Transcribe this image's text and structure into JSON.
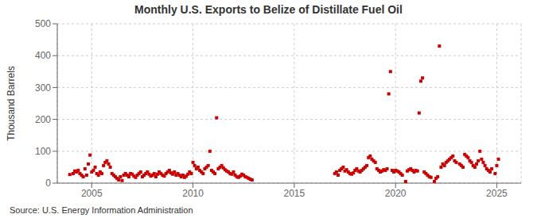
{
  "chart_data": {
    "type": "scatter",
    "title": "Monthly U.S. Exports to Belize of Distillate Fuel Oil",
    "y_label": "Thousand Barrels",
    "annotations": [
      "Source: U.S. Energy Information Administration"
    ],
    "xlim": [
      2003.3,
      2026.2
    ],
    "ylim": [
      0,
      500
    ],
    "xticks": [
      2005,
      2010,
      2015,
      2020,
      2025
    ],
    "yticks": [
      0,
      100,
      200,
      300,
      400,
      500
    ],
    "grid": true,
    "color": "#cc0000",
    "marker": "square",
    "x": [
      2003.917,
      2004.083,
      2004.167,
      2004.25,
      2004.333,
      2004.417,
      2004.5,
      2004.583,
      2004.667,
      2004.75,
      2004.833,
      2004.917,
      2005.0,
      2005.083,
      2005.167,
      2005.25,
      2005.333,
      2005.417,
      2005.5,
      2005.583,
      2005.667,
      2005.75,
      2005.833,
      2005.917,
      2006.0,
      2006.083,
      2006.167,
      2006.25,
      2006.333,
      2006.417,
      2006.5,
      2006.583,
      2006.667,
      2006.75,
      2006.833,
      2006.917,
      2007.0,
      2007.083,
      2007.167,
      2007.25,
      2007.333,
      2007.417,
      2007.5,
      2007.583,
      2007.667,
      2007.75,
      2007.833,
      2007.917,
      2008.0,
      2008.083,
      2008.167,
      2008.25,
      2008.333,
      2008.417,
      2008.5,
      2008.583,
      2008.667,
      2008.75,
      2008.833,
      2008.917,
      2009.0,
      2009.083,
      2009.167,
      2009.25,
      2009.333,
      2009.417,
      2009.5,
      2009.583,
      2009.667,
      2009.75,
      2009.833,
      2009.917,
      2010.0,
      2010.083,
      2010.167,
      2010.25,
      2010.333,
      2010.417,
      2010.5,
      2010.583,
      2010.667,
      2010.75,
      2010.833,
      2010.917,
      2011.0,
      2011.083,
      2011.167,
      2011.25,
      2011.333,
      2011.417,
      2011.5,
      2011.583,
      2011.667,
      2011.75,
      2011.833,
      2011.917,
      2012.0,
      2012.083,
      2012.167,
      2012.25,
      2012.333,
      2012.417,
      2012.5,
      2012.583,
      2012.667,
      2012.75,
      2012.833,
      2012.917,
      2017.0,
      2017.083,
      2017.167,
      2017.25,
      2017.333,
      2017.417,
      2017.5,
      2017.583,
      2017.667,
      2017.75,
      2017.833,
      2017.917,
      2018.0,
      2018.083,
      2018.167,
      2018.25,
      2018.333,
      2018.417,
      2018.5,
      2018.583,
      2018.667,
      2018.75,
      2018.833,
      2018.917,
      2019.0,
      2019.083,
      2019.167,
      2019.25,
      2019.333,
      2019.417,
      2019.5,
      2019.583,
      2019.667,
      2019.75,
      2019.833,
      2019.917,
      2020.0,
      2020.083,
      2020.167,
      2020.25,
      2020.333,
      2020.5,
      2020.583,
      2020.667,
      2020.75,
      2020.833,
      2020.917,
      2021.0,
      2021.083,
      2021.167,
      2021.25,
      2021.333,
      2021.417,
      2021.5,
      2021.583,
      2021.667,
      2021.75,
      2021.917,
      2022.0,
      2022.083,
      2022.167,
      2022.25,
      2022.333,
      2022.417,
      2022.5,
      2022.583,
      2022.667,
      2022.75,
      2022.833,
      2022.917,
      2023.0,
      2023.167,
      2023.25,
      2023.333,
      2023.417,
      2023.5,
      2023.583,
      2023.667,
      2023.75,
      2023.833,
      2023.917,
      2024.0,
      2024.083,
      2024.167,
      2024.25,
      2024.333,
      2024.417,
      2024.5,
      2024.583,
      2024.667,
      2024.75,
      2024.917,
      2025.0,
      2025.083
    ],
    "values": [
      27,
      30,
      38,
      35,
      40,
      30,
      25,
      20,
      45,
      25,
      60,
      88,
      35,
      40,
      50,
      30,
      25,
      35,
      30,
      55,
      65,
      70,
      60,
      50,
      30,
      25,
      20,
      15,
      10,
      20,
      8,
      25,
      30,
      25,
      20,
      30,
      28,
      22,
      18,
      25,
      30,
      35,
      20,
      25,
      30,
      35,
      28,
      22,
      25,
      30,
      20,
      28,
      35,
      30,
      25,
      22,
      30,
      35,
      40,
      32,
      28,
      35,
      25,
      30,
      25,
      20,
      25,
      18,
      22,
      28,
      35,
      30,
      65,
      55,
      45,
      50,
      40,
      35,
      30,
      45,
      50,
      55,
      100,
      40,
      35,
      30,
      205,
      45,
      50,
      55,
      48,
      42,
      38,
      35,
      30,
      28,
      35,
      25,
      20,
      18,
      22,
      28,
      25,
      20,
      18,
      15,
      12,
      10,
      30,
      35,
      25,
      40,
      45,
      50,
      38,
      42,
      35,
      30,
      28,
      32,
      40,
      45,
      38,
      35,
      40,
      45,
      50,
      55,
      80,
      85,
      75,
      70,
      65,
      45,
      40,
      35,
      38,
      42,
      40,
      45,
      280,
      350,
      40,
      35,
      40,
      38,
      35,
      30,
      25,
      5,
      38,
      42,
      45,
      40,
      35,
      40,
      38,
      220,
      320,
      330,
      35,
      30,
      25,
      20,
      18,
      5,
      15,
      20,
      430,
      50,
      60,
      55,
      65,
      70,
      75,
      80,
      85,
      70,
      65,
      60,
      55,
      50,
      90,
      85,
      80,
      70,
      65,
      55,
      50,
      60,
      70,
      100,
      75,
      65,
      55,
      45,
      40,
      35,
      45,
      30,
      55,
      75
    ]
  }
}
